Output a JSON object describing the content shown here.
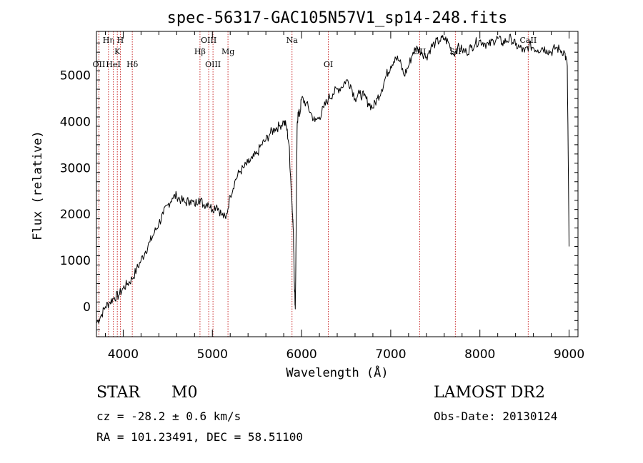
{
  "chart_data": {
    "type": "line",
    "title": "spec-56317-GAC105N57V1_sp14-248.fits",
    "xlabel": "Wavelength (Å)",
    "ylabel": "Flux (relative)",
    "xlim": [
      3700,
      9100
    ],
    "ylim": [
      -650,
      5950
    ],
    "x_ticks": [
      4000,
      5000,
      6000,
      7000,
      8000,
      9000
    ],
    "y_ticks": [
      0,
      1000,
      2000,
      3000,
      4000,
      5000
    ],
    "spectrum": {
      "x": [
        3700,
        3750,
        3800,
        3850,
        3900,
        3950,
        4000,
        4050,
        4100,
        4150,
        4200,
        4250,
        4300,
        4350,
        4400,
        4450,
        4500,
        4550,
        4600,
        4650,
        4700,
        4750,
        4800,
        4850,
        4900,
        4950,
        5000,
        5050,
        5100,
        5150,
        5200,
        5250,
        5300,
        5350,
        5400,
        5450,
        5500,
        5550,
        5600,
        5650,
        5700,
        5750,
        5800,
        5830,
        5860,
        5880,
        5900,
        5910,
        5920,
        5930,
        5940,
        5950,
        5960,
        5980,
        6000,
        6050,
        6100,
        6150,
        6200,
        6250,
        6300,
        6350,
        6400,
        6450,
        6500,
        6550,
        6600,
        6650,
        6700,
        6750,
        6800,
        6850,
        6900,
        6950,
        7000,
        7050,
        7100,
        7150,
        7200,
        7250,
        7300,
        7350,
        7400,
        7450,
        7500,
        7550,
        7600,
        7650,
        7700,
        7750,
        7800,
        7850,
        7900,
        7950,
        8000,
        8050,
        8100,
        8150,
        8200,
        8250,
        8300,
        8350,
        8400,
        8450,
        8500,
        8550,
        8600,
        8650,
        8700,
        8750,
        8800,
        8850,
        8900,
        8950,
        8980,
        9000
      ],
      "y": [
        -350,
        -200,
        0,
        100,
        200,
        250,
        400,
        500,
        600,
        800,
        1000,
        1200,
        1400,
        1600,
        1800,
        2000,
        2200,
        2350,
        2400,
        2300,
        2250,
        2300,
        2200,
        2350,
        2200,
        2250,
        2100,
        2200,
        2000,
        1900,
        2400,
        2700,
        2900,
        3000,
        3100,
        3200,
        3300,
        3500,
        3600,
        3750,
        3850,
        3900,
        4000,
        3900,
        3500,
        2700,
        2000,
        1500,
        500,
        -50,
        1800,
        3800,
        4200,
        4150,
        4500,
        4400,
        4200,
        4000,
        4100,
        4300,
        4500,
        4600,
        4700,
        4750,
        4900,
        4800,
        4500,
        4600,
        4550,
        4400,
        4300,
        4500,
        4700,
        5000,
        5200,
        5400,
        5300,
        5000,
        5200,
        5500,
        5600,
        5500,
        5400,
        5600,
        5700,
        5750,
        5800,
        5700,
        5450,
        5600,
        5550,
        5500,
        5600,
        5700,
        5750,
        5700,
        5650,
        5750,
        5800,
        5700,
        5750,
        5800,
        5650,
        5600,
        5500,
        5650,
        5600,
        5550,
        5600,
        5550,
        5500,
        5600,
        5550,
        5500,
        5200,
        1300
      ]
    },
    "lines": [
      {
        "label": "OII",
        "x": 3727,
        "row": 3
      },
      {
        "label": "Hη",
        "x": 3835,
        "row": 1
      },
      {
        "label": "HeI",
        "x": 3889,
        "row": 3
      },
      {
        "label": "K",
        "x": 3934,
        "row": 2
      },
      {
        "label": "H",
        "x": 3968,
        "row": 1
      },
      {
        "label": "Hδ",
        "x": 4102,
        "row": 3
      },
      {
        "label": "Hβ",
        "x": 4861,
        "row": 2
      },
      {
        "label": "OIII",
        "x": 4959,
        "row": 1
      },
      {
        "label": "OIII",
        "x": 5007,
        "row": 3
      },
      {
        "label": "Mg",
        "x": 5175,
        "row": 2
      },
      {
        "label": "Na",
        "x": 5893,
        "row": 1
      },
      {
        "label": "OI",
        "x": 6300,
        "row": 3
      },
      {
        "label": "OII",
        "x": 7325,
        "row": 2
      },
      {
        "label": "SII",
        "x": 7725,
        "row": 2
      },
      {
        "label": "CaII",
        "x": 8542,
        "row": 1
      }
    ],
    "grid": false,
    "colors": {
      "spectrum": "#000000",
      "line_marker": "#cc3333"
    }
  },
  "info": {
    "object_class": "STAR",
    "subclass": "M0",
    "survey": "LAMOST DR2",
    "cz": "cz = -28.2 ± 0.6 km/s",
    "obs_date": "Obs-Date: 20130124",
    "coords": "RA = 101.23491, DEC =  58.51100"
  }
}
